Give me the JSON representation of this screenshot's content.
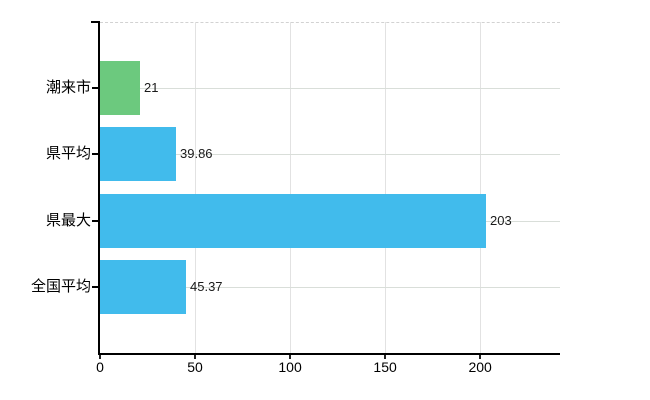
{
  "chart_data": {
    "type": "bar",
    "orientation": "horizontal",
    "title": "",
    "xlabel": "",
    "ylabel": "",
    "categories": [
      "潮来市",
      "県平均",
      "県最大",
      "全国平均"
    ],
    "values": [
      21,
      39.86,
      203,
      45.37
    ],
    "value_labels": [
      "21",
      "39.86",
      "203",
      "45.37"
    ],
    "bar_colors": [
      "#6cc97e",
      "#41bbec",
      "#41bbec",
      "#41bbec"
    ],
    "x_ticks": [
      0,
      50,
      100,
      150,
      200
    ],
    "x_tick_labels": [
      "0",
      "50",
      "100",
      "150",
      "200"
    ],
    "xlim": [
      0,
      242
    ],
    "grid": true,
    "legend": "none",
    "colors": {
      "highlight_bar": "#6cc97e",
      "default_bar": "#41bbec",
      "axis": "#000000",
      "vertical_grid": "#e2e2e2",
      "horizontal_grid": "#d9ded9",
      "top_border_dashed": "#d2d2d2",
      "text": "#1a1a1a"
    }
  }
}
